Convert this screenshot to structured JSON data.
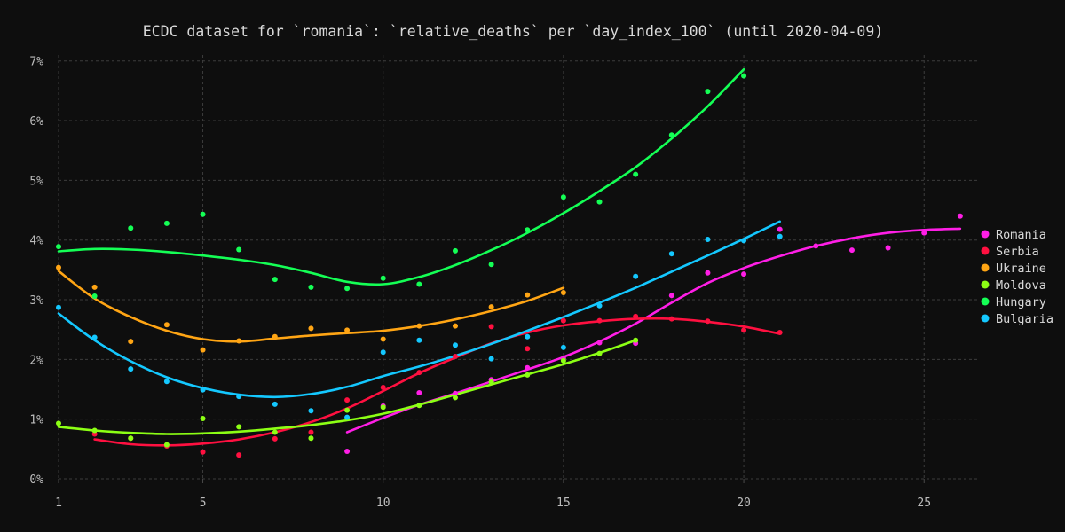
{
  "chart_data": {
    "type": "scatter",
    "title": "ECDC dataset for `romania`: `relative_deaths` per `day_index_100` (until 2020-04-09)",
    "xlabel": "",
    "ylabel": "",
    "xlim": [
      1,
      26.2
    ],
    "ylim": [
      0,
      7.1
    ],
    "x_ticks": [
      1,
      5,
      10,
      15,
      20,
      25
    ],
    "y_ticks": [
      0,
      1,
      2,
      3,
      4,
      5,
      6,
      7
    ],
    "y_tick_suffix": "%",
    "grid": true,
    "legend_position": "right",
    "series": [
      {
        "name": "Romania",
        "color": "#ff1ee6",
        "points": [
          [
            9,
            0.46
          ],
          [
            10,
            1.22
          ],
          [
            11,
            1.44
          ],
          [
            12,
            1.43
          ],
          [
            13,
            1.66
          ],
          [
            14,
            1.86
          ],
          [
            15,
            2.02
          ],
          [
            16,
            2.28
          ],
          [
            17,
            2.27
          ],
          [
            18,
            3.07
          ],
          [
            19,
            3.45
          ],
          [
            20,
            3.43
          ],
          [
            21,
            4.18
          ],
          [
            22,
            3.9
          ],
          [
            23,
            3.83
          ],
          [
            24,
            3.87
          ],
          [
            25,
            4.12
          ],
          [
            26,
            4.4
          ]
        ],
        "trend": [
          [
            9,
            0.78
          ],
          [
            10,
            1.02
          ],
          [
            11,
            1.24
          ],
          [
            12,
            1.43
          ],
          [
            13,
            1.63
          ],
          [
            14,
            1.83
          ],
          [
            15,
            2.04
          ],
          [
            16,
            2.3
          ],
          [
            17,
            2.6
          ],
          [
            18,
            2.95
          ],
          [
            19,
            3.28
          ],
          [
            20,
            3.53
          ],
          [
            21,
            3.73
          ],
          [
            22,
            3.9
          ],
          [
            23,
            4.03
          ],
          [
            24,
            4.12
          ],
          [
            25,
            4.17
          ],
          [
            26,
            4.19
          ]
        ]
      },
      {
        "name": "Serbia",
        "color": "#ff1040",
        "points": [
          [
            2,
            0.75
          ],
          [
            3,
            0.68
          ],
          [
            4,
            0.55
          ],
          [
            5,
            0.45
          ],
          [
            6,
            0.4
          ],
          [
            7,
            0.67
          ],
          [
            8,
            0.78
          ],
          [
            9,
            1.32
          ],
          [
            10,
            1.53
          ],
          [
            11,
            1.78
          ],
          [
            12,
            2.05
          ],
          [
            13,
            2.55
          ],
          [
            14,
            2.18
          ],
          [
            15,
            2.65
          ],
          [
            16,
            2.65
          ],
          [
            17,
            2.72
          ],
          [
            18,
            2.68
          ],
          [
            19,
            2.64
          ],
          [
            20,
            2.49
          ],
          [
            21,
            2.45
          ]
        ],
        "trend": [
          [
            2,
            0.66
          ],
          [
            3,
            0.58
          ],
          [
            4,
            0.56
          ],
          [
            5,
            0.59
          ],
          [
            6,
            0.66
          ],
          [
            7,
            0.78
          ],
          [
            8,
            0.95
          ],
          [
            9,
            1.18
          ],
          [
            10,
            1.47
          ],
          [
            11,
            1.77
          ],
          [
            12,
            2.03
          ],
          [
            13,
            2.27
          ],
          [
            14,
            2.45
          ],
          [
            15,
            2.57
          ],
          [
            16,
            2.64
          ],
          [
            17,
            2.68
          ],
          [
            18,
            2.68
          ],
          [
            19,
            2.63
          ],
          [
            20,
            2.55
          ],
          [
            21,
            2.43
          ]
        ]
      },
      {
        "name": "Ukraine",
        "color": "#ffa514",
        "points": [
          [
            1,
            3.54
          ],
          [
            2,
            3.21
          ],
          [
            3,
            2.3
          ],
          [
            4,
            2.58
          ],
          [
            5,
            2.16
          ],
          [
            6,
            2.31
          ],
          [
            7,
            2.38
          ],
          [
            8,
            2.52
          ],
          [
            9,
            2.49
          ],
          [
            10,
            2.34
          ],
          [
            11,
            2.56
          ],
          [
            12,
            2.56
          ],
          [
            13,
            2.88
          ],
          [
            14,
            3.08
          ],
          [
            15,
            3.12
          ]
        ],
        "trend": [
          [
            1,
            3.48
          ],
          [
            2,
            3.02
          ],
          [
            3,
            2.71
          ],
          [
            4,
            2.48
          ],
          [
            5,
            2.34
          ],
          [
            6,
            2.3
          ],
          [
            7,
            2.35
          ],
          [
            8,
            2.4
          ],
          [
            9,
            2.44
          ],
          [
            10,
            2.48
          ],
          [
            11,
            2.56
          ],
          [
            12,
            2.67
          ],
          [
            13,
            2.81
          ],
          [
            14,
            2.98
          ],
          [
            15,
            3.2
          ]
        ]
      },
      {
        "name": "Moldova",
        "color": "#8cff14",
        "points": [
          [
            1,
            0.93
          ],
          [
            2,
            0.81
          ],
          [
            3,
            0.68
          ],
          [
            4,
            0.57
          ],
          [
            5,
            1.01
          ],
          [
            6,
            0.87
          ],
          [
            7,
            0.78
          ],
          [
            8,
            0.68
          ],
          [
            9,
            1.15
          ],
          [
            10,
            1.2
          ],
          [
            11,
            1.23
          ],
          [
            12,
            1.36
          ],
          [
            13,
            1.62
          ],
          [
            14,
            1.74
          ],
          [
            15,
            1.98
          ],
          [
            16,
            2.1
          ],
          [
            17,
            2.32
          ]
        ],
        "trend": [
          [
            1,
            0.87
          ],
          [
            2,
            0.81
          ],
          [
            3,
            0.77
          ],
          [
            4,
            0.75
          ],
          [
            5,
            0.76
          ],
          [
            6,
            0.79
          ],
          [
            7,
            0.84
          ],
          [
            8,
            0.9
          ],
          [
            9,
            0.98
          ],
          [
            10,
            1.09
          ],
          [
            11,
            1.24
          ],
          [
            12,
            1.41
          ],
          [
            13,
            1.58
          ],
          [
            14,
            1.75
          ],
          [
            15,
            1.92
          ],
          [
            16,
            2.11
          ],
          [
            17,
            2.32
          ]
        ]
      },
      {
        "name": "Hungary",
        "color": "#14ff55",
        "points": [
          [
            1,
            3.89
          ],
          [
            2,
            3.06
          ],
          [
            3,
            4.2
          ],
          [
            4,
            4.28
          ],
          [
            5,
            4.43
          ],
          [
            6,
            3.84
          ],
          [
            7,
            3.34
          ],
          [
            8,
            3.21
          ],
          [
            9,
            3.19
          ],
          [
            10,
            3.36
          ],
          [
            11,
            3.26
          ],
          [
            12,
            3.82
          ],
          [
            13,
            3.59
          ],
          [
            14,
            4.17
          ],
          [
            15,
            4.72
          ],
          [
            16,
            4.64
          ],
          [
            17,
            5.1
          ],
          [
            18,
            5.76
          ],
          [
            19,
            6.49
          ],
          [
            20,
            6.75
          ]
        ],
        "trend": [
          [
            1,
            3.81
          ],
          [
            2,
            3.85
          ],
          [
            3,
            3.84
          ],
          [
            4,
            3.8
          ],
          [
            5,
            3.74
          ],
          [
            6,
            3.67
          ],
          [
            7,
            3.58
          ],
          [
            8,
            3.45
          ],
          [
            9,
            3.3
          ],
          [
            10,
            3.26
          ],
          [
            11,
            3.38
          ],
          [
            12,
            3.58
          ],
          [
            13,
            3.83
          ],
          [
            14,
            4.12
          ],
          [
            15,
            4.45
          ],
          [
            16,
            4.82
          ],
          [
            17,
            5.22
          ],
          [
            18,
            5.7
          ],
          [
            19,
            6.24
          ],
          [
            20,
            6.86
          ]
        ]
      },
      {
        "name": "Bulgaria",
        "color": "#14c8ff",
        "points": [
          [
            1,
            2.87
          ],
          [
            2,
            2.37
          ],
          [
            3,
            1.84
          ],
          [
            4,
            1.63
          ],
          [
            5,
            1.49
          ],
          [
            6,
            1.38
          ],
          [
            7,
            1.25
          ],
          [
            8,
            1.14
          ],
          [
            9,
            1.03
          ],
          [
            10,
            2.12
          ],
          [
            11,
            2.32
          ],
          [
            12,
            2.24
          ],
          [
            13,
            2.01
          ],
          [
            14,
            2.38
          ],
          [
            15,
            2.2
          ],
          [
            16,
            2.9
          ],
          [
            17,
            3.39
          ],
          [
            18,
            3.77
          ],
          [
            19,
            4.01
          ],
          [
            20,
            3.99
          ],
          [
            21,
            4.06
          ]
        ],
        "trend": [
          [
            1,
            2.77
          ],
          [
            2,
            2.32
          ],
          [
            3,
            1.97
          ],
          [
            4,
            1.7
          ],
          [
            5,
            1.52
          ],
          [
            6,
            1.41
          ],
          [
            7,
            1.37
          ],
          [
            8,
            1.42
          ],
          [
            9,
            1.54
          ],
          [
            10,
            1.72
          ],
          [
            11,
            1.88
          ],
          [
            12,
            2.06
          ],
          [
            13,
            2.26
          ],
          [
            14,
            2.48
          ],
          [
            15,
            2.71
          ],
          [
            16,
            2.95
          ],
          [
            17,
            3.2
          ],
          [
            18,
            3.47
          ],
          [
            19,
            3.74
          ],
          [
            20,
            4.02
          ],
          [
            21,
            4.31
          ]
        ]
      }
    ]
  }
}
